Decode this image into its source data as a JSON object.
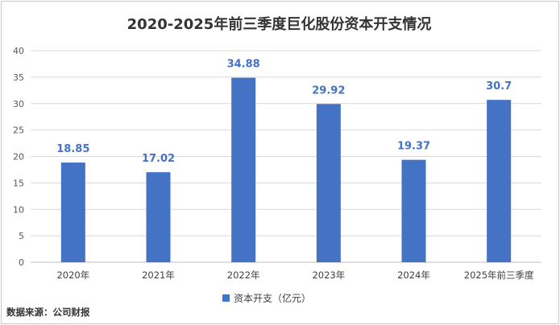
{
  "chart_data": {
    "type": "bar",
    "title": "2020-2025年前三季度巨化股份资本开支情况",
    "categories": [
      "2020年",
      "2021年",
      "2022年",
      "2023年",
      "2024年",
      "2025年前三季度"
    ],
    "series": [
      {
        "name": "资本开支（亿元）",
        "values": [
          18.85,
          17.02,
          34.88,
          29.92,
          19.37,
          30.7
        ],
        "labels": [
          "18.85",
          "17.02",
          "34.88",
          "29.92",
          "19.37",
          "30.7"
        ]
      }
    ],
    "ylim": [
      0,
      40
    ],
    "yticks": [
      0,
      5,
      10,
      15,
      20,
      25,
      30,
      35,
      40
    ],
    "grid": true,
    "legend_position": "bottom",
    "bar_color": "#4472c4",
    "label_color": "#4472c4"
  },
  "source_text": "数据来源：公司财报"
}
